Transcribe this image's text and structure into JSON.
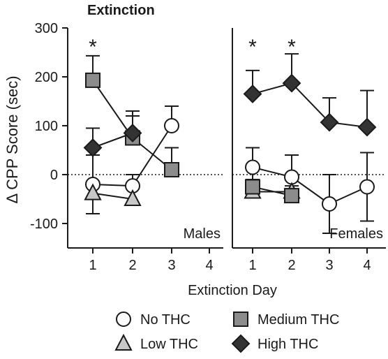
{
  "chart_data": {
    "type": "line",
    "title": "Extinction",
    "ylabel": "Δ CPP Score (sec)",
    "xlabel": "Extinction Day",
    "ylim": [
      -150,
      300
    ],
    "yticks": [
      "300",
      "200",
      "100",
      "0",
      "-100"
    ],
    "ytick_values": [
      300,
      200,
      100,
      0,
      -100
    ],
    "x": [
      1,
      2,
      3,
      4
    ],
    "xtick_labels": [
      "1",
      "2",
      "3",
      "4"
    ],
    "reference_line": {
      "y": 0,
      "style": "dotted"
    },
    "legend_placement": "bottom",
    "significance_marker": "*",
    "panels": [
      {
        "label": "Males",
        "significance_days": [
          1
        ],
        "series": [
          {
            "name": "No THC",
            "marker": "circle",
            "fill": "#ffffff",
            "values": [
              -20,
              -23,
              100,
              null
            ],
            "errors": [
              60,
              null,
              40,
              null
            ]
          },
          {
            "name": "Low THC",
            "marker": "triangle",
            "fill": "#c8c8c8",
            "values": [
              -38,
              -50,
              null,
              null
            ],
            "errors": [
              null,
              50,
              null,
              null
            ]
          },
          {
            "name": "Medium THC",
            "marker": "square",
            "fill": "#8c8c8c",
            "values": [
              193,
              75,
              10,
              null
            ],
            "errors": [
              50,
              45,
              45,
              null
            ]
          },
          {
            "name": "High THC",
            "marker": "diamond",
            "fill": "#333333",
            "values": [
              55,
              85,
              null,
              null
            ],
            "errors": [
              40,
              45,
              null,
              null
            ]
          }
        ]
      },
      {
        "label": "Females",
        "significance_days": [
          1,
          2
        ],
        "series": [
          {
            "name": "No THC",
            "marker": "circle",
            "fill": "#ffffff",
            "values": [
              15,
              -5,
              -60,
              -25
            ],
            "errors": [
              40,
              45,
              60,
              70
            ]
          },
          {
            "name": "Low THC",
            "marker": "triangle",
            "fill": "#c8c8c8",
            "values": [
              -35,
              -35,
              null,
              null
            ],
            "errors": [
              25,
              25,
              null,
              null
            ]
          },
          {
            "name": "Medium THC",
            "marker": "square",
            "fill": "#8c8c8c",
            "values": [
              -25,
              -43,
              null,
              null
            ],
            "errors": [
              35,
              20,
              null,
              null
            ]
          },
          {
            "name": "High THC",
            "marker": "diamond",
            "fill": "#333333",
            "values": [
              165,
              187,
              107,
              97
            ],
            "errors": [
              48,
              60,
              50,
              75
            ]
          }
        ]
      }
    ],
    "legend": [
      {
        "name": "No THC",
        "marker": "circle",
        "fill": "#ffffff"
      },
      {
        "name": "Medium THC",
        "marker": "square",
        "fill": "#8c8c8c"
      },
      {
        "name": "Low THC",
        "marker": "triangle",
        "fill": "#c8c8c8"
      },
      {
        "name": "High THC",
        "marker": "diamond",
        "fill": "#333333"
      }
    ],
    "colors": {
      "stroke": "#1a1a1a",
      "axis": "#1a1a1a"
    }
  }
}
